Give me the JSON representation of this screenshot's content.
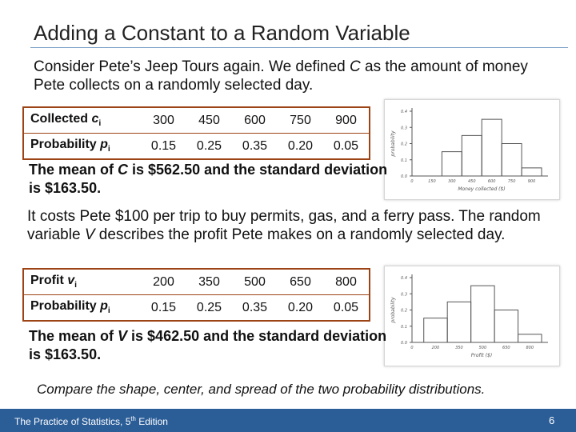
{
  "title": "Adding a Constant to a Random Variable",
  "intro": {
    "pre": "Consider Pete’s Jeep Tours again. We defined ",
    "var": "C",
    "post": " as the amount of money Pete collects on a randomly selected day."
  },
  "table1": {
    "row1_label": "Collected ",
    "row1_var": "c",
    "row1_sub": "i",
    "row2_label": "Probability ",
    "row2_var": "p",
    "row2_sub": "i",
    "values": [
      "300",
      "450",
      "600",
      "750",
      "900"
    ],
    "probs": [
      "0.15",
      "0.25",
      "0.35",
      "0.20",
      "0.05"
    ]
  },
  "mean1": {
    "pre": "The mean of ",
    "var": "C",
    "post": " is $562.50 and the standard deviation is $163.50."
  },
  "middle": {
    "pre": "It costs Pete $100 per trip to buy permits, gas, and a ferry pass.  The random variable ",
    "var": "V",
    "post": " describes the profit Pete makes on a randomly selected day."
  },
  "table2": {
    "row1_label": "Profit ",
    "row1_var": "v",
    "row1_sub": "i",
    "row2_label": "Probability ",
    "row2_var": "p",
    "row2_sub": "i",
    "values": [
      "200",
      "350",
      "500",
      "650",
      "800"
    ],
    "probs": [
      "0.15",
      "0.25",
      "0.35",
      "0.20",
      "0.05"
    ]
  },
  "mean2": {
    "pre": "The mean of ",
    "var": "V",
    "post": " is $462.50 and the standard deviation is $163.50."
  },
  "hist1": {
    "ylabel": "probability",
    "xlabel": "Money collected ($)",
    "yticks": [
      "0.4",
      "0.3",
      "0.2",
      "0.1",
      "0.0"
    ],
    "xticks": [
      "0",
      "150",
      "300",
      "450",
      "600",
      "750",
      "900"
    ],
    "probs": [
      0.15,
      0.25,
      0.35,
      0.2,
      0.05
    ]
  },
  "hist2": {
    "ylabel": "probability",
    "xlabel": "Profit ($)",
    "yticks": [
      "0.4",
      "0.3",
      "0.2",
      "0.1",
      "0.0"
    ],
    "xticks": [
      "0",
      "200",
      "350",
      "500",
      "650",
      "800"
    ],
    "probs": [
      0.15,
      0.25,
      0.35,
      0.2,
      0.05
    ]
  },
  "closing": "Compare the shape, center, and spread of the two probability distributions.",
  "footer": {
    "book_pre": "The Practice of Statistics, 5",
    "book_sup": "th",
    "book_post": " Edition",
    "page": "6"
  },
  "colors": {
    "table_border": "#9c4415",
    "footer_bg": "#2b5d97",
    "title_rule": "#7aa0c8"
  }
}
